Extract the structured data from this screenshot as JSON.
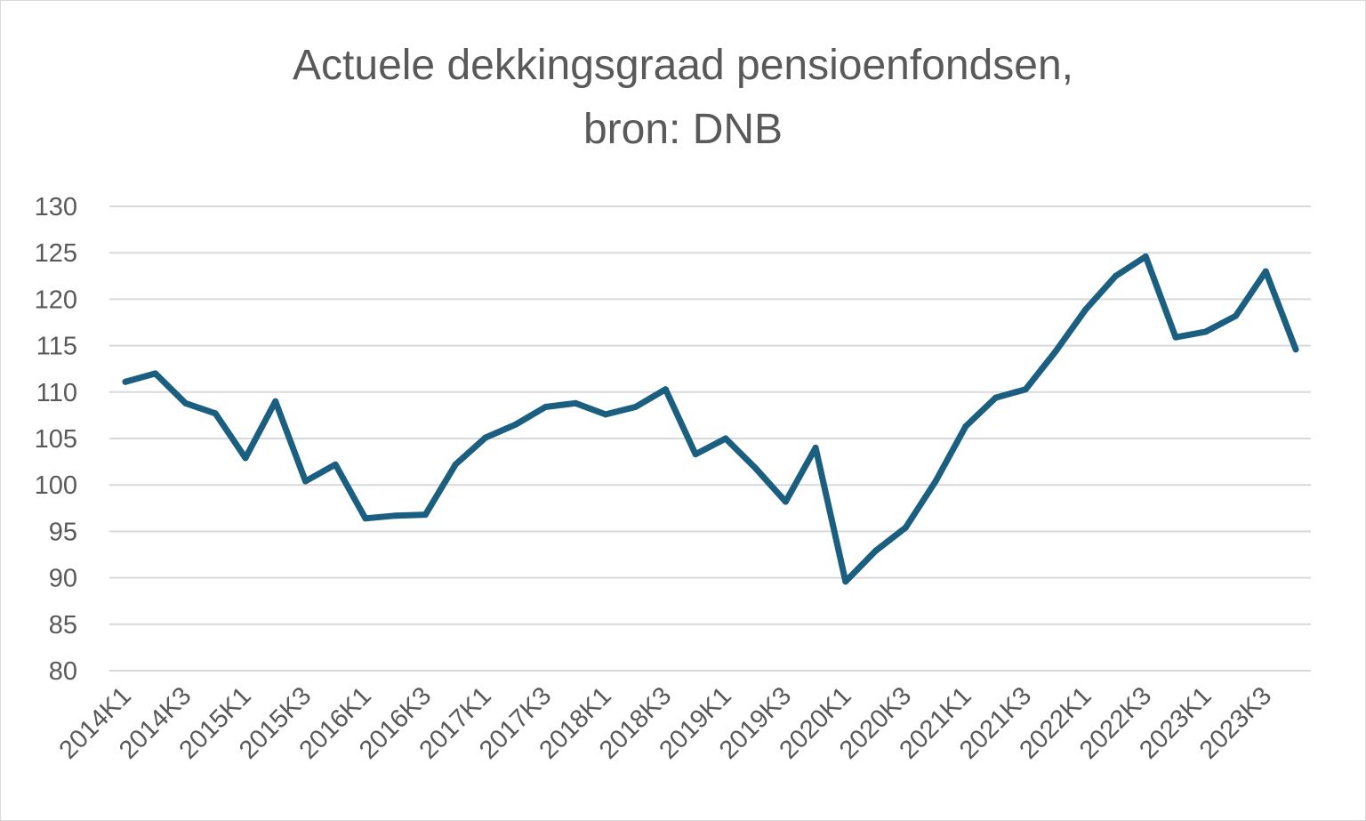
{
  "chart_data": {
    "type": "line",
    "title_line1": "Actuele dekkingsgraad pensioenfondsen,",
    "title_line2": "bron: DNB",
    "xlabel": "",
    "ylabel": "",
    "ylim": [
      80,
      130
    ],
    "ytick_step": 5,
    "grid": true,
    "legend": "none",
    "line_color": "#1a5e80",
    "grid_color": "#d9d9d9",
    "categories": [
      "2014K1",
      "2014K2",
      "2014K3",
      "2014K4",
      "2015K1",
      "2015K2",
      "2015K3",
      "2015K4",
      "2016K1",
      "2016K2",
      "2016K3",
      "2016K4",
      "2017K1",
      "2017K2",
      "2017K3",
      "2017K4",
      "2018K1",
      "2018K2",
      "2018K3",
      "2018K4",
      "2019K1",
      "2019K2",
      "2019K3",
      "2019K4",
      "2020K1",
      "2020K2",
      "2020K3",
      "2020K4",
      "2021K1",
      "2021K2",
      "2021K3",
      "2021K4",
      "2022K1",
      "2022K2",
      "2022K3",
      "2022K4",
      "2023K1",
      "2023K2",
      "2023K3",
      "2023K4"
    ],
    "visible_tick_labels": [
      "2014K1",
      "2014K3",
      "2015K1",
      "2015K3",
      "2016K1",
      "2016K3",
      "2017K1",
      "2017K3",
      "2018K1",
      "2018K3",
      "2019K1",
      "2019K3",
      "2020K1",
      "2020K3",
      "2021K1",
      "2021K3",
      "2022K1",
      "2022K3",
      "2023K1",
      "2023K3"
    ],
    "series": [
      {
        "values": [
          111.1,
          112.0,
          108.8,
          107.7,
          102.9,
          109.0,
          100.4,
          102.2,
          96.4,
          96.7,
          96.8,
          102.2,
          105.1,
          106.5,
          108.4,
          108.8,
          107.6,
          108.4,
          110.3,
          103.3,
          105.0,
          101.8,
          98.2,
          104.0,
          89.6,
          92.9,
          95.4,
          100.4,
          106.3,
          109.4,
          110.3,
          114.4,
          118.9,
          122.5,
          124.6,
          115.9,
          116.5,
          118.2,
          123.0,
          114.6
        ]
      }
    ]
  }
}
